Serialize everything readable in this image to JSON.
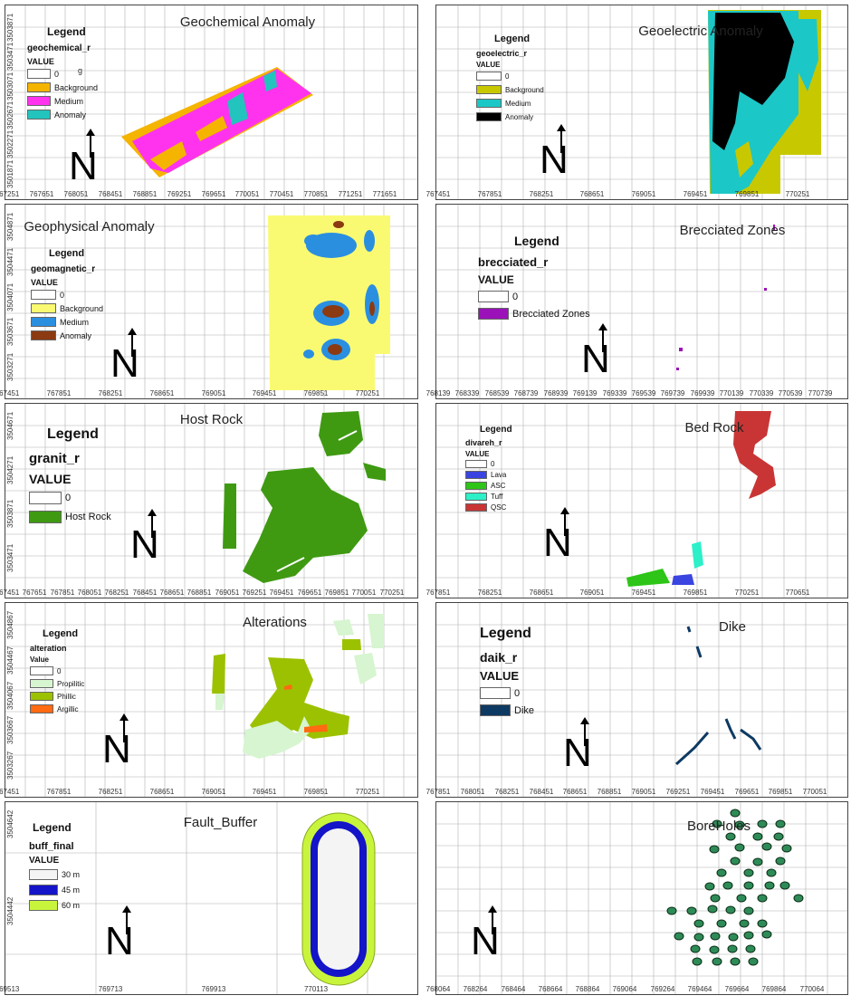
{
  "panels": [
    {
      "title": "Geochemical Anomaly",
      "legend": {
        "title": "Legend",
        "layer": "geochemical_r",
        "value": "VALUE",
        "items": [
          {
            "label": "0",
            "color": "#ffffff"
          },
          {
            "label": "Background",
            "color": "#f5b400"
          },
          {
            "label": "Medium",
            "color": "#ff33ee"
          },
          {
            "label": "Anomaly",
            "color": "#22c4bd"
          }
        ]
      },
      "stray_text": "g",
      "x_ticks": [
        "767251",
        "767651",
        "768051",
        "768451",
        "768851",
        "769251",
        "769651",
        "770051",
        "770451",
        "770851",
        "771251",
        "771651"
      ],
      "y_ticks": [
        "3503871",
        "3503471",
        "3503071",
        "3502671",
        "3502271",
        "3501871"
      ]
    },
    {
      "title": "Geoelectric Anomaly",
      "legend": {
        "title": "Legend",
        "layer": "geoelectric_r",
        "value": "VALUE",
        "items": [
          {
            "label": "0",
            "color": "#ffffff"
          },
          {
            "label": "Background",
            "color": "#c8c800"
          },
          {
            "label": "Medium",
            "color": "#1cc7c7"
          },
          {
            "label": "Anomaly",
            "color": "#000000"
          }
        ]
      },
      "x_ticks": [
        "767451",
        "767851",
        "768251",
        "768651",
        "769051",
        "769451",
        "769851",
        "770251"
      ],
      "y_ticks": []
    },
    {
      "title": "Geophysical Anomaly",
      "legend": {
        "title": "Legend",
        "layer": "geomagnetic_r",
        "value": "VALUE",
        "items": [
          {
            "label": "0",
            "color": "#ffffff"
          },
          {
            "label": "Background",
            "color": "#fafa72"
          },
          {
            "label": "Medium",
            "color": "#2b8fe0"
          },
          {
            "label": "Anomaly",
            "color": "#8b3a12"
          }
        ]
      },
      "x_ticks": [
        "767451",
        "767851",
        "768251",
        "768651",
        "769051",
        "769451",
        "769851",
        "770251"
      ],
      "y_ticks": [
        "3504871",
        "3504471",
        "3504071",
        "3503671",
        "3503271"
      ]
    },
    {
      "title": "Brecciated Zones",
      "legend": {
        "title": "Legend",
        "layer": "brecciated_r",
        "value": "VALUE",
        "items": [
          {
            "label": "0",
            "color": "#ffffff"
          },
          {
            "label": "Brecciated Zones",
            "color": "#9b12b8"
          }
        ]
      },
      "x_ticks": [
        "768139",
        "768339",
        "768539",
        "768739",
        "768939",
        "769139",
        "769339",
        "769539",
        "769739",
        "769939",
        "770139",
        "770339",
        "770539",
        "770739"
      ],
      "y_ticks": []
    },
    {
      "title": "Host Rock",
      "legend": {
        "title": "Legend",
        "layer": "granit_r",
        "value": "VALUE",
        "items": [
          {
            "label": "0",
            "color": "#ffffff"
          },
          {
            "label": "Host Rock",
            "color": "#3f9a12"
          }
        ]
      },
      "x_ticks": [
        "767451",
        "767651",
        "767851",
        "768051",
        "768251",
        "768451",
        "768651",
        "768851",
        "769051",
        "769251",
        "769451",
        "769651",
        "769851",
        "770051",
        "770251"
      ],
      "y_ticks": [
        "3504671",
        "3504271",
        "3503871",
        "3503471"
      ]
    },
    {
      "title": "Bed Rock",
      "legend": {
        "title": "Legend",
        "layer": "divareh_r",
        "value": "VALUE",
        "items": [
          {
            "label": "0",
            "color": "#ffffff"
          },
          {
            "label": "Lava",
            "color": "#3a44e0"
          },
          {
            "label": "ASC",
            "color": "#2ec418"
          },
          {
            "label": "Tuff",
            "color": "#2cf0c8"
          },
          {
            "label": "QSC",
            "color": "#c93535"
          }
        ]
      },
      "x_ticks": [
        "767851",
        "768251",
        "768651",
        "769051",
        "769451",
        "769851",
        "770251",
        "770651"
      ],
      "y_ticks": []
    },
    {
      "title": "Alterations",
      "legend": {
        "title": "Legend",
        "layer": "alteration",
        "value": "Value",
        "items": [
          {
            "label": "0",
            "color": "#ffffff"
          },
          {
            "label": "Propilitic",
            "color": "#d6f5d0"
          },
          {
            "label": "Phillic",
            "color": "#9cc100"
          },
          {
            "label": "Argillic",
            "color": "#ff6a12"
          }
        ]
      },
      "x_ticks": [
        "767451",
        "767851",
        "768251",
        "768651",
        "769051",
        "769451",
        "769851",
        "770251"
      ],
      "y_ticks": [
        "3504867",
        "3504467",
        "3504067",
        "3503667",
        "3503267"
      ]
    },
    {
      "title": "Dike",
      "legend": {
        "title": "Legend",
        "layer": "daik_r",
        "value": "VALUE",
        "items": [
          {
            "label": "0",
            "color": "#ffffff"
          },
          {
            "label": "Dike",
            "color": "#0d3a63"
          }
        ]
      },
      "x_ticks": [
        "767851",
        "768051",
        "768251",
        "768451",
        "768651",
        "768851",
        "769051",
        "769251",
        "769451",
        "769651",
        "769851",
        "770051"
      ],
      "y_ticks": []
    },
    {
      "title": "Fault_Buffer",
      "legend": {
        "title": "Legend",
        "layer": "buff_final",
        "value": "VALUE",
        "items": [
          {
            "label": "30 m",
            "color": "#f4f4f4"
          },
          {
            "label": "45 m",
            "color": "#1414c8"
          },
          {
            "label": "60 m",
            "color": "#c8f53c"
          }
        ]
      },
      "x_ticks": [
        "769513",
        "769713",
        "769913",
        "770113"
      ],
      "y_ticks": [
        "3504642",
        "3504442"
      ]
    },
    {
      "title": "BoreHoles",
      "x_ticks": [
        "768064",
        "768264",
        "768464",
        "768664",
        "768864",
        "769064",
        "769264",
        "769464",
        "769664",
        "769864",
        "770064"
      ],
      "y_ticks": []
    }
  ],
  "north_label": "N",
  "colors": {
    "grid": "#b0b0b0",
    "border": "#444444",
    "borehole_fill": "#2e8b57",
    "borehole_stroke": "#0a2a14"
  }
}
